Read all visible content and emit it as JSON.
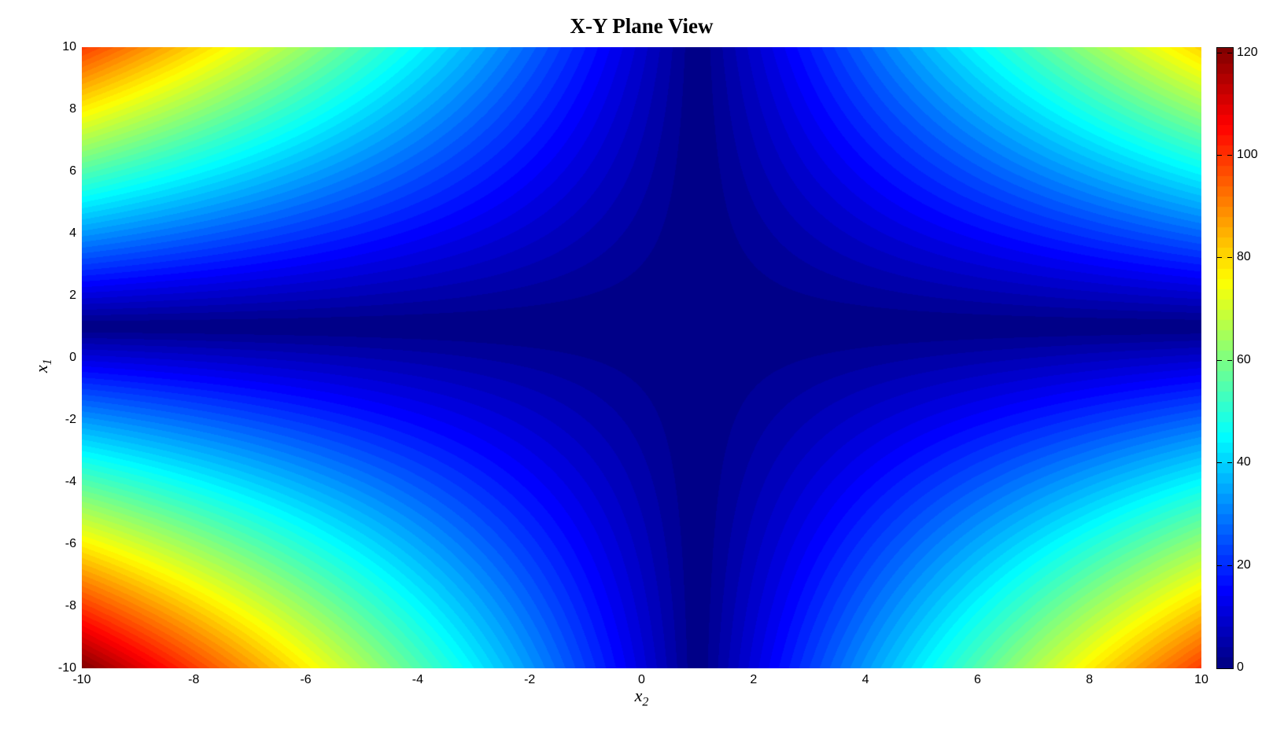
{
  "chart": {
    "title": "X-Y Plane View",
    "xlabel_base": "x",
    "xlabel_sub": "2",
    "ylabel_base": "x",
    "ylabel_sub": "1"
  },
  "chart_data": {
    "type": "heatmap",
    "title": "X-Y Plane View",
    "xlabel": "x_2",
    "ylabel": "x_1",
    "x_range": [
      -10,
      10
    ],
    "y_range": [
      -10,
      10
    ],
    "x_ticks": [
      -10,
      -8,
      -6,
      -4,
      -2,
      0,
      2,
      4,
      6,
      8,
      10
    ],
    "y_ticks": [
      -10,
      -8,
      -6,
      -4,
      -2,
      0,
      2,
      4,
      6,
      8,
      10
    ],
    "colormap": "jet",
    "contour_level_step": 2,
    "z_min": 0,
    "z_max": 121,
    "colorbar_ticks": [
      0,
      20,
      40,
      60,
      80,
      100,
      120
    ],
    "x": [
      -10,
      -9,
      -8,
      -7,
      -6,
      -5,
      -4,
      -3,
      -2,
      -1,
      0,
      1,
      2,
      3,
      4,
      5,
      6,
      7,
      8,
      9,
      10
    ],
    "y": [
      10,
      9,
      8,
      7,
      6,
      5,
      4,
      3,
      2,
      1,
      0,
      -1,
      -2,
      -3,
      -4,
      -5,
      -6,
      -7,
      -8,
      -9,
      -10
    ],
    "z": [
      [
        99,
        90,
        81,
        72,
        63,
        54,
        45,
        36,
        27,
        18,
        9,
        0,
        9,
        18,
        27,
        36,
        45,
        54,
        63,
        72,
        81
      ],
      [
        88,
        80,
        72,
        64,
        56,
        48,
        40,
        32,
        24,
        16,
        8,
        0,
        8,
        16,
        24,
        32,
        40,
        48,
        56,
        64,
        72
      ],
      [
        77,
        70,
        63,
        56,
        49,
        42,
        35,
        28,
        21,
        14,
        7,
        0,
        7,
        14,
        21,
        28,
        35,
        42,
        49,
        56,
        63
      ],
      [
        66,
        60,
        54,
        48,
        42,
        36,
        30,
        24,
        18,
        12,
        6,
        0,
        6,
        12,
        18,
        24,
        30,
        36,
        42,
        48,
        54
      ],
      [
        55,
        50,
        45,
        40,
        35,
        30,
        25,
        20,
        15,
        10,
        5,
        0,
        5,
        10,
        15,
        20,
        25,
        30,
        35,
        40,
        45
      ],
      [
        44,
        40,
        36,
        32,
        28,
        24,
        20,
        16,
        12,
        8,
        4,
        0,
        4,
        8,
        12,
        16,
        20,
        24,
        28,
        32,
        36
      ],
      [
        33,
        30,
        27,
        24,
        21,
        18,
        15,
        12,
        9,
        6,
        3,
        0,
        3,
        6,
        9,
        12,
        15,
        18,
        21,
        24,
        27
      ],
      [
        22,
        20,
        18,
        16,
        14,
        12,
        10,
        8,
        6,
        4,
        2,
        0,
        2,
        4,
        6,
        8,
        10,
        12,
        14,
        16,
        18
      ],
      [
        11,
        10,
        9,
        8,
        7,
        6,
        5,
        4,
        3,
        2,
        1,
        0,
        1,
        2,
        3,
        4,
        5,
        6,
        7,
        8,
        9
      ],
      [
        0,
        0,
        0,
        0,
        0,
        0,
        0,
        0,
        0,
        0,
        0,
        0,
        0,
        0,
        0,
        0,
        0,
        0,
        0,
        0,
        0
      ],
      [
        11,
        10,
        9,
        8,
        7,
        6,
        5,
        4,
        3,
        2,
        1,
        0,
        1,
        2,
        3,
        4,
        5,
        6,
        7,
        8,
        9
      ],
      [
        22,
        20,
        18,
        16,
        14,
        12,
        10,
        8,
        6,
        4,
        2,
        0,
        2,
        4,
        6,
        8,
        10,
        12,
        14,
        16,
        18
      ],
      [
        33,
        30,
        27,
        24,
        21,
        18,
        15,
        12,
        9,
        6,
        3,
        0,
        3,
        6,
        9,
        12,
        15,
        18,
        21,
        24,
        27
      ],
      [
        44,
        40,
        36,
        32,
        28,
        24,
        20,
        16,
        12,
        8,
        4,
        0,
        4,
        8,
        12,
        16,
        20,
        24,
        28,
        32,
        36
      ],
      [
        55,
        50,
        45,
        40,
        35,
        30,
        25,
        20,
        15,
        10,
        5,
        0,
        5,
        10,
        15,
        20,
        25,
        30,
        35,
        40,
        45
      ],
      [
        66,
        60,
        54,
        48,
        42,
        36,
        30,
        24,
        18,
        12,
        6,
        0,
        6,
        12,
        18,
        24,
        30,
        36,
        42,
        48,
        54
      ],
      [
        77,
        70,
        63,
        56,
        49,
        42,
        35,
        28,
        21,
        14,
        7,
        0,
        7,
        14,
        21,
        28,
        35,
        42,
        49,
        56,
        63
      ],
      [
        88,
        80,
        72,
        64,
        56,
        48,
        40,
        32,
        24,
        16,
        8,
        0,
        8,
        16,
        24,
        32,
        40,
        48,
        56,
        64,
        72
      ],
      [
        99,
        90,
        81,
        72,
        63,
        54,
        45,
        36,
        27,
        18,
        9,
        0,
        9,
        18,
        27,
        36,
        45,
        54,
        63,
        72,
        81
      ],
      [
        110,
        100,
        90,
        80,
        70,
        60,
        50,
        40,
        30,
        20,
        10,
        0,
        10,
        20,
        30,
        40,
        50,
        60,
        70,
        80,
        90
      ],
      [
        121,
        110,
        99,
        88,
        77,
        66,
        55,
        44,
        33,
        22,
        11,
        0,
        11,
        22,
        33,
        44,
        55,
        66,
        77,
        88,
        99
      ]
    ]
  },
  "layout_colors": {
    "background": "#ffffff",
    "min_color": "#000089",
    "max_color": "#800000",
    "text": "#000000"
  }
}
